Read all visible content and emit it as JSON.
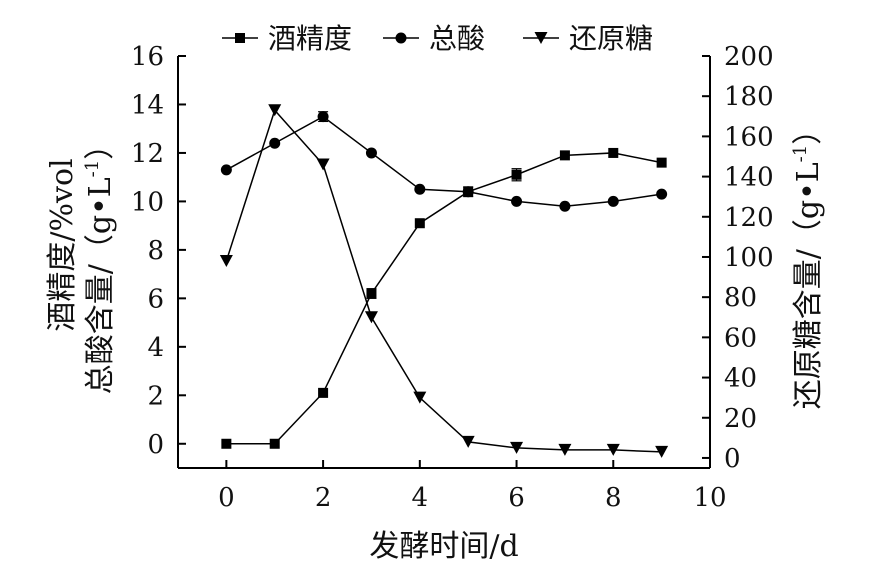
{
  "chart_data": {
    "type": "line",
    "x": [
      0,
      1,
      2,
      3,
      4,
      5,
      6,
      7,
      8,
      9
    ],
    "xlabel": "发酵时间/d",
    "xlim": [
      -1,
      10
    ],
    "xticks": [
      0,
      2,
      4,
      6,
      8,
      10
    ],
    "ylabel_left_line1": "酒精度/%vol",
    "ylabel_left_line2": "总酸含量/（g•L",
    "ylabel_left_sup": "-1",
    "ylabel_left_end": "）",
    "ylim_left": [
      -1,
      16
    ],
    "yticks_left": [
      0,
      2,
      4,
      6,
      8,
      10,
      12,
      14,
      16
    ],
    "ylabel_right": "还原糖含量/（g•L",
    "ylabel_right_sup": "-1",
    "ylabel_right_end": "）",
    "ylim_right": [
      -5,
      200
    ],
    "yticks_right": [
      0,
      20,
      40,
      60,
      80,
      100,
      120,
      140,
      160,
      180,
      200
    ],
    "legend_position": "top",
    "series": [
      {
        "name": "酒精度",
        "axis": "left",
        "marker": "square",
        "values": [
          0.0,
          0.0,
          2.1,
          6.2,
          9.1,
          10.4,
          11.1,
          11.9,
          12.0,
          11.6
        ],
        "error": [
          0,
          0,
          0,
          0.2,
          0,
          0.2,
          0.25,
          0,
          0,
          0
        ]
      },
      {
        "name": "总酸",
        "axis": "left",
        "marker": "circle",
        "values": [
          11.3,
          12.4,
          13.5,
          12.0,
          10.5,
          10.4,
          10.0,
          9.8,
          10.0,
          10.3
        ],
        "error": [
          0,
          0,
          0.2,
          0,
          0,
          0,
          0,
          0,
          0,
          0
        ]
      },
      {
        "name": "还原糖",
        "axis": "right",
        "marker": "triangle-down",
        "values": [
          98,
          173,
          146,
          70,
          30,
          8,
          5,
          4,
          4,
          3
        ],
        "error": [
          0,
          0,
          0,
          0,
          0,
          0,
          0,
          0,
          0,
          0
        ]
      }
    ],
    "grid": false
  }
}
